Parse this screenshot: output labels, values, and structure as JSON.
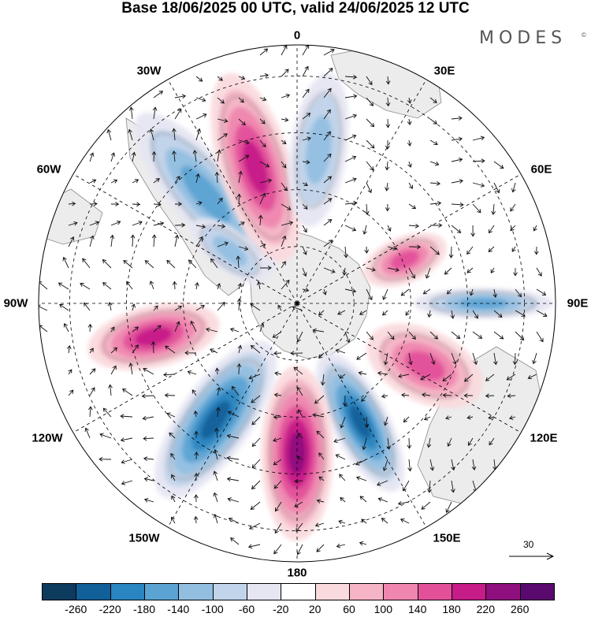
{
  "title": "Base 18/06/2025 00 UTC, valid 24/06/2025 12 UTC",
  "brand": "MODES",
  "brand_mark": "©",
  "longitude_labels": {
    "lon_0": "0",
    "lon_30e": "30E",
    "lon_60e": "60E",
    "lon_90e": "90E",
    "lon_120e": "120E",
    "lon_150e": "150E",
    "lon_180": "180",
    "lon_150w": "150W",
    "lon_120w": "120W",
    "lon_90w": "90W",
    "lon_60w": "60W",
    "lon_30w": "30W"
  },
  "reference_vector": {
    "label": "30"
  },
  "colorbar": {
    "tick_labels": [
      "-260",
      "-220",
      "-180",
      "-140",
      "-100",
      "-60",
      "-20",
      "20",
      "60",
      "100",
      "140",
      "180",
      "220",
      "260"
    ],
    "colors": [
      "#0d3b5e",
      "#11609a",
      "#2a85c0",
      "#5ba3d3",
      "#92bfe0",
      "#c1d4ea",
      "#e6e6f2",
      "#ffffff",
      "#fadadd",
      "#f5b5c6",
      "#ee86af",
      "#e2509a",
      "#c51c88",
      "#8f0f7e",
      "#5a0a6e"
    ]
  },
  "anomaly_cells": [
    {
      "name": "cell-blue-30w",
      "lon_deg": -40,
      "dist": 0.55,
      "r1": 0.4,
      "r2": 0.13,
      "value": -160
    },
    {
      "name": "cell-pink-15w",
      "lon_deg": -17,
      "dist": 0.55,
      "r1": 0.38,
      "r2": 0.14,
      "value": 200
    },
    {
      "name": "cell-blue-10e",
      "lon_deg": 8,
      "dist": 0.6,
      "r1": 0.3,
      "r2": 0.11,
      "value": -130
    },
    {
      "name": "cell-pink-60e",
      "lon_deg": 68,
      "dist": 0.45,
      "r1": 0.17,
      "r2": 0.09,
      "value": 170
    },
    {
      "name": "cell-blue-90e",
      "lon_deg": 90,
      "dist": 0.72,
      "r1": 0.27,
      "r2": 0.06,
      "value": -150
    },
    {
      "name": "cell-pink-120e",
      "lon_deg": 116,
      "dist": 0.55,
      "r1": 0.24,
      "r2": 0.14,
      "value": 150
    },
    {
      "name": "cell-blue-150e",
      "lon_deg": 152,
      "dist": 0.52,
      "r1": 0.3,
      "r2": 0.11,
      "value": -240
    },
    {
      "name": "cell-pink-180",
      "lon_deg": 180,
      "dist": 0.58,
      "r1": 0.34,
      "r2": 0.14,
      "value": 230
    },
    {
      "name": "cell-blue-150w",
      "lon_deg": -145,
      "dist": 0.55,
      "r1": 0.36,
      "r2": 0.14,
      "value": -250
    },
    {
      "name": "cell-pink-100w",
      "lon_deg": -103,
      "dist": 0.57,
      "r1": 0.26,
      "r2": 0.12,
      "value": 200
    },
    {
      "name": "cell-blue-70w",
      "lon_deg": -52,
      "dist": 0.33,
      "r1": 0.18,
      "r2": 0.08,
      "value": -130
    }
  ]
}
